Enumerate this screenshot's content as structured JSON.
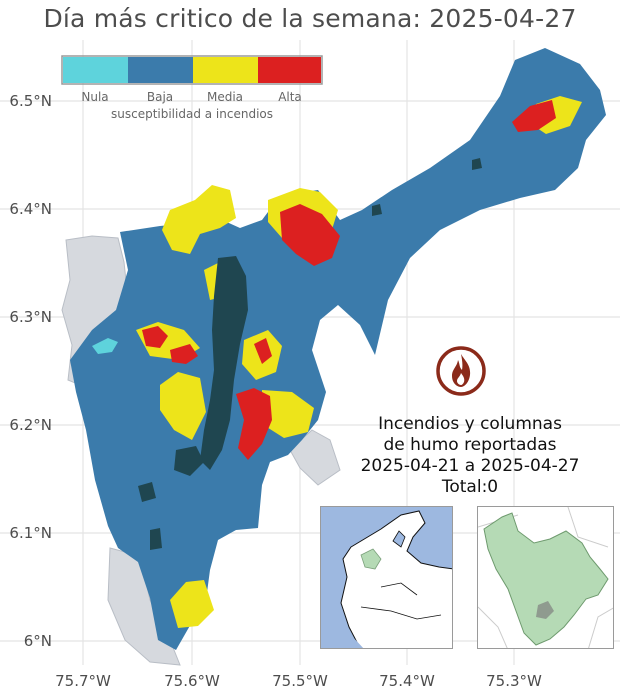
{
  "title": "Día más critico de la semana: 2025-04-27",
  "axes": {
    "y_ticks": [
      "6.5°N",
      "6.4°N",
      "6.3°N",
      "6.2°N",
      "6.1°N",
      "6°N"
    ],
    "x_ticks": [
      "75.7°W",
      "75.6°W",
      "75.5°W",
      "75.4°W",
      "75.3°W"
    ]
  },
  "legend": {
    "title": "susceptibilidad a incendios",
    "categories": [
      {
        "label": "Nula",
        "color": "#5ed3dc"
      },
      {
        "label": "Baja",
        "color": "#3b7bab"
      },
      {
        "label": "Media",
        "color": "#ede41a"
      },
      {
        "label": "Alta",
        "color": "#dc2020"
      }
    ]
  },
  "colors": {
    "background_region": "#d6d9de",
    "urban": "#1f4650",
    "grid": "#e4e4e4",
    "inset_ocean": "#9db8e0",
    "inset_highlight": "#b5dab5",
    "fire_icon": "#8b2a1a"
  },
  "icons": {
    "fire": "fire-icon"
  },
  "fires": {
    "heading_line1": "Incendios y columnas",
    "heading_line2": "de humo reportadas",
    "date_range": "2025-04-21 a 2025-04-27",
    "total": "Total:0"
  }
}
